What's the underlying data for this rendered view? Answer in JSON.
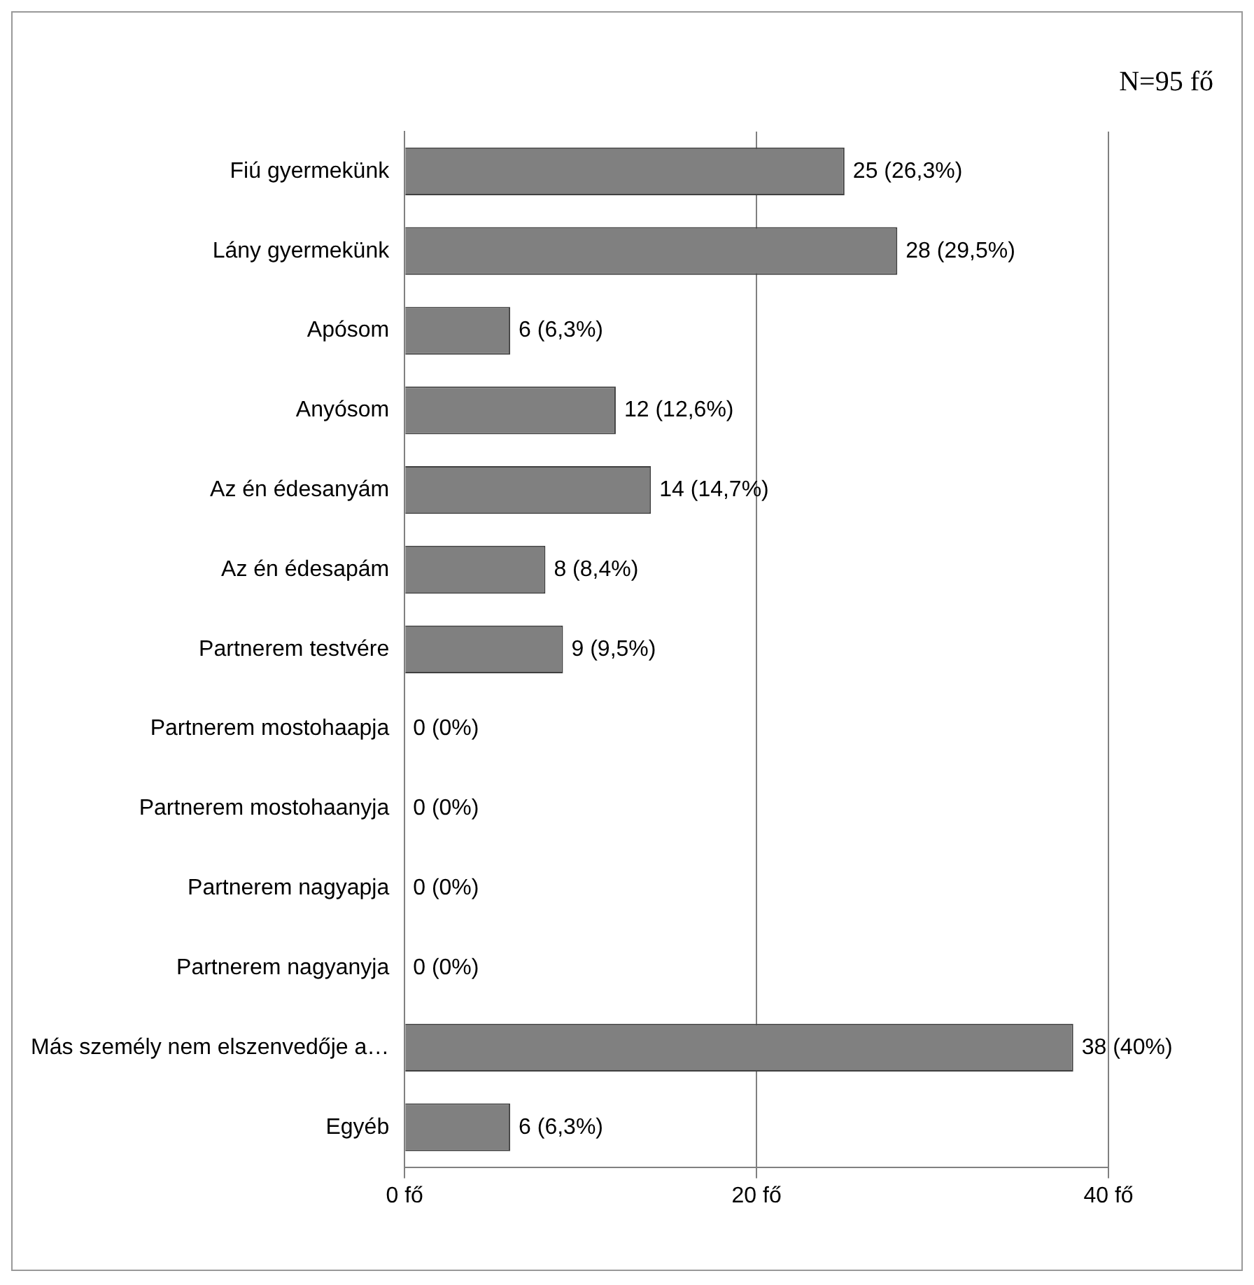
{
  "chart_data": {
    "type": "bar",
    "orientation": "horizontal",
    "categories": [
      "Fiú gyermekünk",
      "Lány gyermekünk",
      "Apósom",
      "Anyósom",
      "Az én édesanyám",
      "Az én édesapám",
      "Partnerem testvére",
      "Partnerem mostohaapja",
      "Partnerem mostohaanyja",
      "Partnerem nagyapja",
      "Partnerem nagyanyja",
      "Más személy nem elszenvedője a…",
      "Egyéb"
    ],
    "values": [
      25,
      28,
      6,
      12,
      14,
      8,
      9,
      0,
      0,
      0,
      0,
      38,
      6
    ],
    "value_labels": [
      "25 (26,3%)",
      "28 (29,5%)",
      "6 (6,3%)",
      "12 (12,6%)",
      "14 (14,7%)",
      "8 (8,4%)",
      "9 (9,5%)",
      "0 (0%)",
      "0 (0%)",
      "0 (0%)",
      "0 (0%)",
      "38 (40%)",
      "6 (6,3%)"
    ],
    "color": "#808080",
    "xlim": [
      0,
      40
    ],
    "xticks": [
      {
        "value": 0,
        "label": "0 fő"
      },
      {
        "value": 20,
        "label": "20 fő"
      },
      {
        "value": 40,
        "label": "40 fő"
      }
    ],
    "grid": "x",
    "legend": false,
    "annotations": [
      "N=95 fő"
    ]
  }
}
